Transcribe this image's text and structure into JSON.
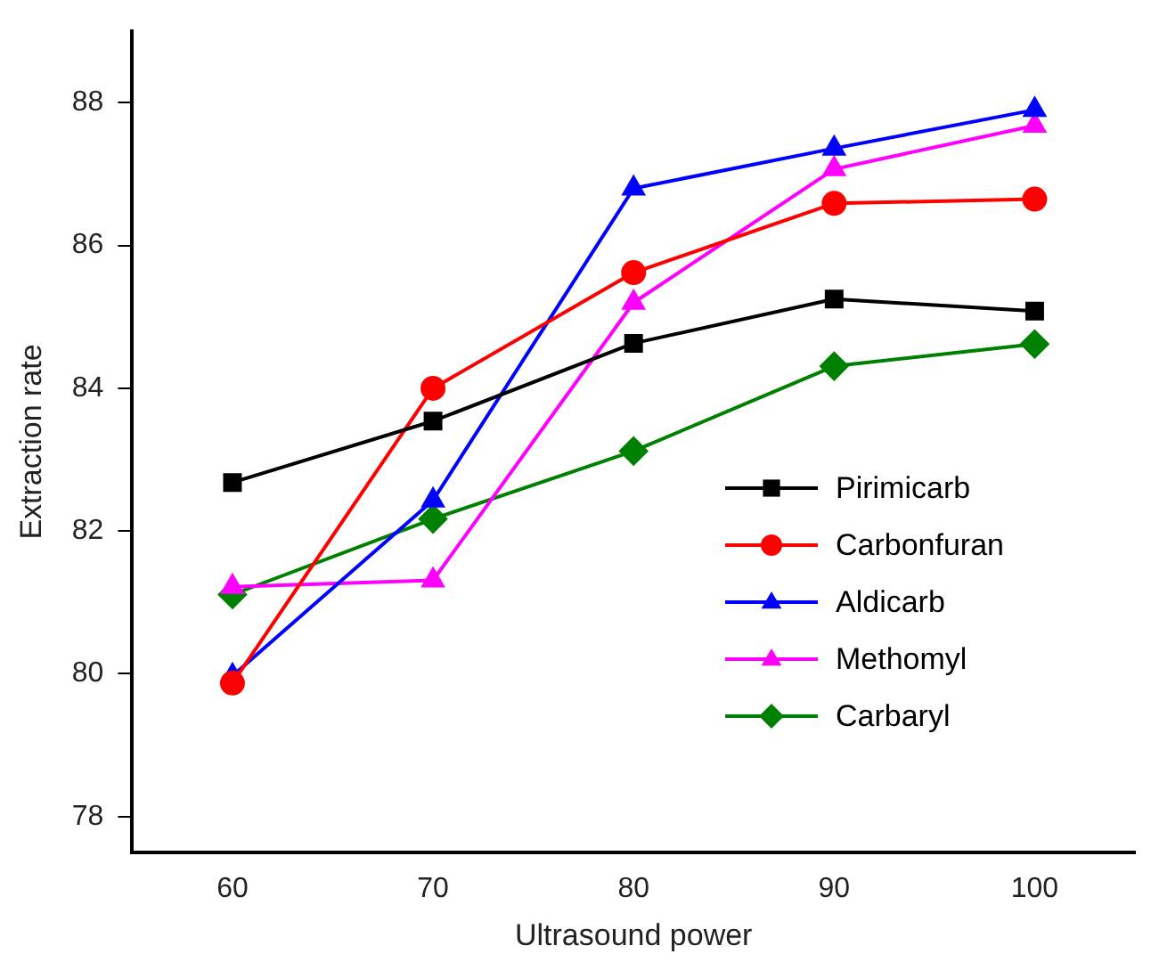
{
  "chart_data": {
    "type": "line",
    "xlabel": "Ultrasound power",
    "ylabel": "Extraction rate",
    "x": [
      60,
      70,
      80,
      90,
      100
    ],
    "xlim": [
      55,
      105
    ],
    "xticks": [
      60,
      70,
      80,
      90,
      100
    ],
    "ylim": [
      77.5,
      89
    ],
    "yticks": [
      78,
      80,
      82,
      84,
      86,
      88
    ],
    "grid": false,
    "legend": "right",
    "line_style": "solid",
    "series": [
      {
        "name": "Pirimicarb",
        "color": "#000000",
        "marker": "square",
        "values": [
          82.68,
          83.54,
          84.63,
          85.25,
          85.08
        ]
      },
      {
        "name": "Carbonfuran",
        "color": "#ff0000",
        "marker": "circle",
        "values": [
          79.87,
          84.0,
          85.62,
          86.59,
          86.65
        ]
      },
      {
        "name": "Aldicarb",
        "color": "#0000ff",
        "marker": "triangle",
        "values": [
          79.97,
          82.43,
          86.8,
          87.36,
          87.9
        ]
      },
      {
        "name": "Methomyl",
        "color": "#ff00ff",
        "marker": "triangle",
        "values": [
          81.22,
          81.31,
          85.2,
          87.07,
          87.68
        ]
      },
      {
        "name": "Carbaryl",
        "color": "#008000",
        "marker": "diamond",
        "values": [
          81.11,
          82.17,
          83.12,
          84.31,
          84.62
        ]
      }
    ]
  }
}
